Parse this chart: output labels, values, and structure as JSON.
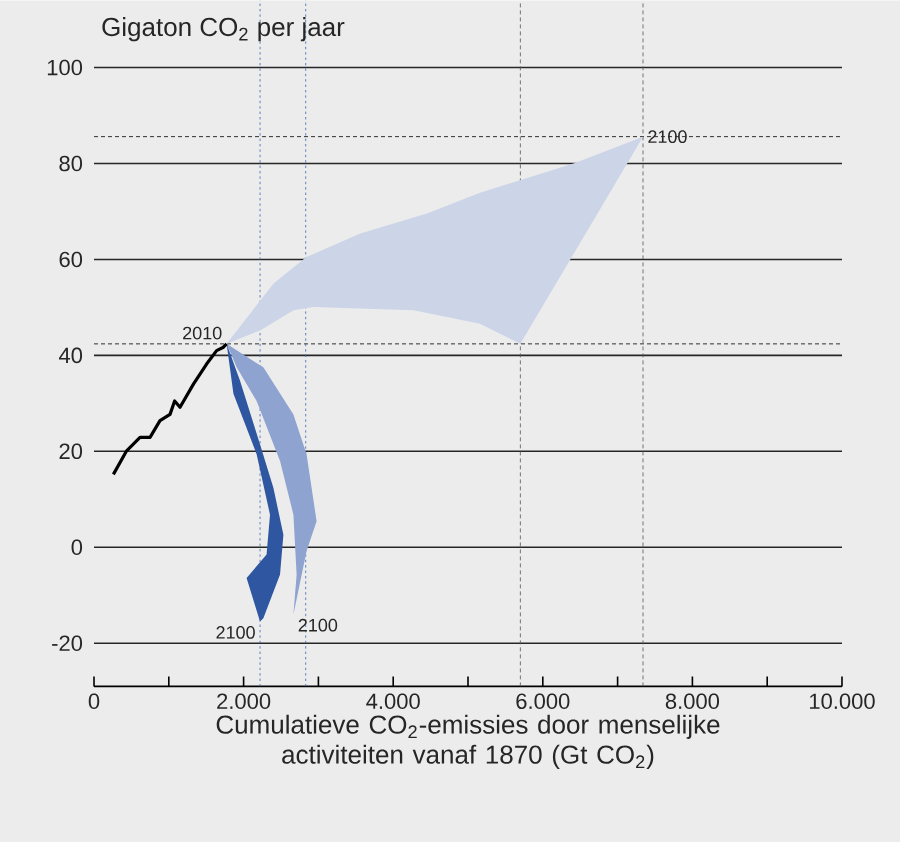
{
  "chart_data": {
    "type": "area",
    "ylabel": "Gigaton CO$_{2}$ per jaar",
    "xlabel": "Cumulatieve CO$_{2}$-emissies door menselijke activiteiten vanaf 1870 (Gt CO$_{2}$)",
    "series": [
      {
        "color": "#ccd5e8",
        "x": [
          1773,
          2400,
          2840,
          3560,
          4450,
          5160,
          6410,
          7340,
          5700,
          5160,
          4270,
          2930,
          2670,
          2220
        ],
        "values": [
          42.4,
          55,
          60.5,
          65.4,
          69.6,
          73.9,
          80,
          85.6,
          42.4,
          46.6,
          49.4,
          50.1,
          49.4,
          45.2
        ]
      },
      {
        "color": "#8fa3d0",
        "x": [
          1773,
          2264,
          2666,
          2842,
          2976,
          2842,
          2666,
          2709,
          2666,
          2487,
          2174,
          1907
        ],
        "values": [
          42.4,
          37.5,
          27.7,
          19.4,
          5.4,
          -0.8,
          -14,
          -5.7,
          6.8,
          18,
          30.5,
          37.5
        ]
      },
      {
        "color": "#2f56a0",
        "x": [
          1773,
          1952,
          2219,
          2398,
          2532,
          2487,
          2264,
          2219,
          2040,
          2307,
          2353,
          2174,
          1864
        ],
        "values": [
          42.4,
          34.7,
          21.5,
          12.4,
          2.6,
          -5.7,
          -14.8,
          -15.5,
          -6.4,
          -1.5,
          6.8,
          19.4,
          32
        ]
      },
      {
        "type": "line",
        "color": "#000000",
        "x": [
          259,
          436,
          615,
          749,
          882,
          1016,
          1078,
          1150,
          1329,
          1505,
          1639,
          1730,
          1773
        ],
        "values": [
          15.2,
          20.1,
          22.9,
          22.9,
          26.4,
          27.7,
          30.5,
          29.2,
          34,
          38.2,
          41,
          41.7,
          42.4
        ]
      }
    ],
    "xlim": [
      0,
      10000
    ],
    "ylim": [
      -29,
      114
    ],
    "xticks": [
      {
        "value": 0,
        "label": "0"
      },
      {
        "value": 1000,
        "label": null
      },
      {
        "value": 2000,
        "label": "2.000"
      },
      {
        "value": 3000,
        "label": null
      },
      {
        "value": 4000,
        "label": "4.000"
      },
      {
        "value": 5000,
        "label": null
      },
      {
        "value": 6000,
        "label": "6.000"
      },
      {
        "value": 7000,
        "label": null
      },
      {
        "value": 8000,
        "label": "8.000"
      },
      {
        "value": 9000,
        "label": null
      },
      {
        "value": 10000,
        "label": "10.000"
      }
    ],
    "yticks": [
      -20,
      0,
      20,
      40,
      60,
      80,
      100
    ],
    "grid": "y",
    "ref_lines": [
      {
        "axis": "y",
        "value": 85.6,
        "color": "#000000",
        "line_style": "dashed"
      },
      {
        "axis": "y",
        "value": 42.4,
        "color": "#000000",
        "line_style": "dashed"
      },
      {
        "axis": "x",
        "value": 5700,
        "color": "#555555",
        "line_style": "dashed"
      },
      {
        "axis": "x",
        "value": 7340,
        "color": "#555555",
        "line_style": "dashed"
      },
      {
        "axis": "x",
        "value": 2220,
        "color": "#3a62b0",
        "line_style": "dotted"
      },
      {
        "axis": "x",
        "value": 2830,
        "color": "#3a62b0",
        "line_style": "dotted"
      }
    ],
    "annotations": [
      {
        "text": "2010",
        "x": 1773,
        "y": 42.4
      },
      {
        "text": "2100",
        "x": 7340,
        "y": 85.6
      },
      {
        "text": "2100",
        "x": 2219,
        "y": -15.5
      },
      {
        "text": "2100",
        "x": 2666,
        "y": -14
      }
    ]
  }
}
